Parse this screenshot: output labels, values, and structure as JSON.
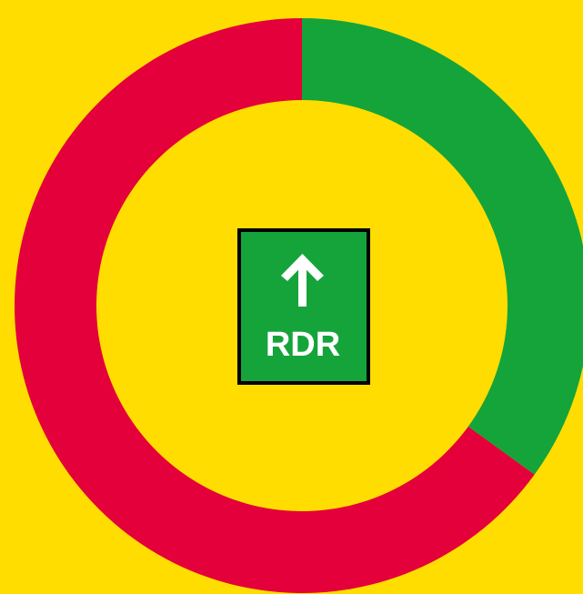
{
  "chart_data": {
    "type": "donut",
    "values": [
      35,
      65
    ],
    "colors": [
      "#15a43a",
      "#e4003a"
    ],
    "center_label": "RDR",
    "center_color": "#15a43a",
    "background": "#ffdd00"
  }
}
